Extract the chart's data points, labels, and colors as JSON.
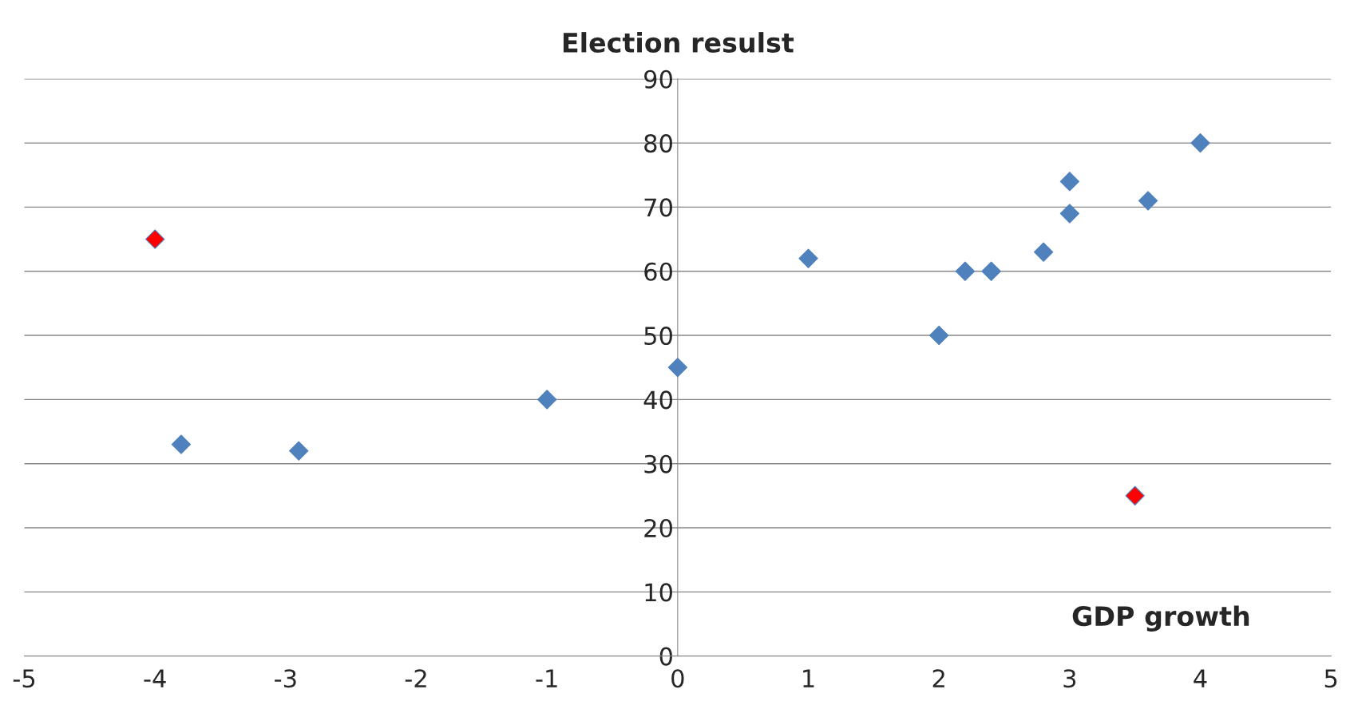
{
  "chart_data": {
    "type": "scatter",
    "title": "Election resulst",
    "xlabel": "GDP growth",
    "marker": "diamond",
    "grid": "y",
    "xlim": [
      -5,
      5
    ],
    "xticks": [
      -5,
      -4,
      -3,
      -2,
      -1,
      0,
      1,
      2,
      3,
      4,
      5
    ],
    "ylim": [
      0,
      90
    ],
    "yticks": [
      0,
      10,
      20,
      30,
      40,
      50,
      60,
      70,
      80,
      90
    ],
    "series": [
      {
        "color": "#4f81bd",
        "x": [
          -3.8,
          -2.9,
          -1,
          0,
          1,
          2,
          2.2,
          2.4,
          2.8,
          3,
          3,
          3.6,
          4
        ],
        "values": [
          33,
          32,
          40,
          45,
          62,
          50,
          60,
          60,
          63,
          69,
          74,
          71,
          80
        ]
      },
      {
        "color": "#ff0000",
        "x": [
          -4,
          3.5
        ],
        "values": [
          65,
          25
        ]
      }
    ]
  }
}
